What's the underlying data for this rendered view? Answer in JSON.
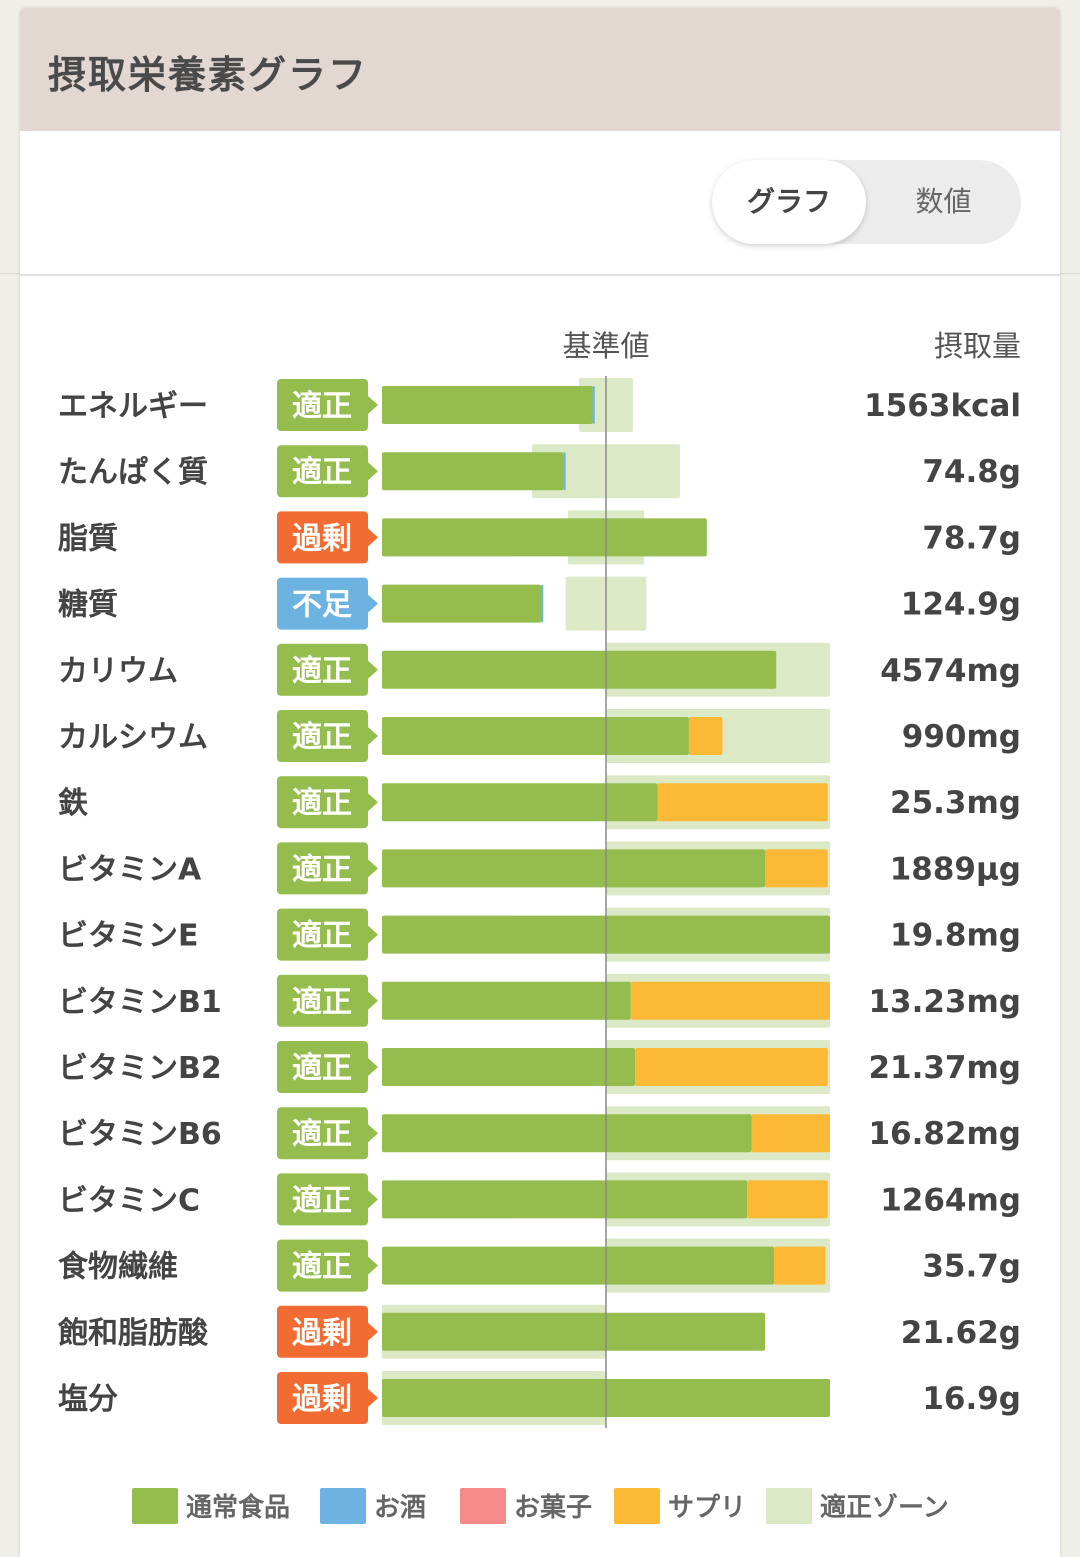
{
  "header": {
    "title": "摂取栄養素グラフ"
  },
  "view_toggle": {
    "graph_label": "グラフ",
    "value_label": "数値",
    "selected": "グラフ"
  },
  "colors": {
    "normal_food": "#94bd4d",
    "alcohol": "#6db3e2",
    "snacks": "#f58a8a",
    "supplement": "#fbb935",
    "proper_zone": "#dbe9c6",
    "status_proper": "#94bd4d",
    "status_excess": "#f26b32",
    "status_short": "#6db3e2"
  },
  "chart_data": {
    "type": "bar",
    "orientation": "horizontal",
    "stacked": true,
    "reference_label": "基準値",
    "value_header": "摂取量",
    "xlim_percent_of_reference": [
      0,
      200
    ],
    "reference_percent": 100,
    "legend": [
      {
        "key": "normal_food",
        "label": "通常食品"
      },
      {
        "key": "alcohol",
        "label": "お酒"
      },
      {
        "key": "snacks",
        "label": "お菓子"
      },
      {
        "key": "supplement",
        "label": "サプリ"
      },
      {
        "key": "proper_zone",
        "label": "適正ゾーン"
      }
    ],
    "legend_position": "bottom",
    "items": [
      {
        "name": "エネルギー",
        "status": "適正",
        "status_type": "proper",
        "intake": "1563kcal",
        "food_pct": 94,
        "alcohol_pct": 1,
        "snacks_pct": 0,
        "supplement_pct": 0,
        "zone_pct": [
          88,
          112
        ]
      },
      {
        "name": "たんぱく質",
        "status": "適正",
        "status_type": "proper",
        "intake": "74.8g",
        "food_pct": 81,
        "alcohol_pct": 1,
        "snacks_pct": 0,
        "supplement_pct": 0,
        "zone_pct": [
          67,
          133
        ]
      },
      {
        "name": "脂質",
        "status": "過剰",
        "status_type": "excess",
        "intake": "78.7g",
        "food_pct": 145,
        "alcohol_pct": 0,
        "snacks_pct": 0,
        "supplement_pct": 0,
        "zone_pct": [
          83,
          117
        ]
      },
      {
        "name": "糖質",
        "status": "不足",
        "status_type": "short",
        "intake": "124.9g",
        "food_pct": 71,
        "alcohol_pct": 1,
        "snacks_pct": 0,
        "supplement_pct": 0,
        "zone_pct": [
          82,
          118
        ]
      },
      {
        "name": "カリウム",
        "status": "適正",
        "status_type": "proper",
        "intake": "4574mg",
        "food_pct": 176,
        "alcohol_pct": 0,
        "snacks_pct": 0,
        "supplement_pct": 0,
        "zone_pct": [
          100,
          200
        ]
      },
      {
        "name": "カルシウム",
        "status": "適正",
        "status_type": "proper",
        "intake": "990mg",
        "food_pct": 137,
        "alcohol_pct": 0,
        "snacks_pct": 0,
        "supplement_pct": 15,
        "zone_pct": [
          100,
          200
        ]
      },
      {
        "name": "鉄",
        "status": "適正",
        "status_type": "proper",
        "intake": "25.3mg",
        "food_pct": 123,
        "alcohol_pct": 0,
        "snacks_pct": 0,
        "supplement_pct": 76,
        "zone_pct": [
          100,
          200
        ]
      },
      {
        "name": "ビタミンA",
        "status": "適正",
        "status_type": "proper",
        "intake": "1889μg",
        "food_pct": 171,
        "alcohol_pct": 0,
        "snacks_pct": 0,
        "supplement_pct": 28,
        "zone_pct": [
          100,
          200
        ]
      },
      {
        "name": "ビタミンE",
        "status": "適正",
        "status_type": "proper",
        "intake": "19.8mg",
        "food_pct": 200,
        "alcohol_pct": 0,
        "snacks_pct": 0,
        "supplement_pct": 0,
        "zone_pct": [
          100,
          200
        ]
      },
      {
        "name": "ビタミンB1",
        "status": "適正",
        "status_type": "proper",
        "intake": "13.23mg",
        "food_pct": 111,
        "alcohol_pct": 0,
        "snacks_pct": 0,
        "supplement_pct": 89,
        "zone_pct": [
          100,
          200
        ]
      },
      {
        "name": "ビタミンB2",
        "status": "適正",
        "status_type": "proper",
        "intake": "21.37mg",
        "food_pct": 113,
        "alcohol_pct": 0,
        "snacks_pct": 0,
        "supplement_pct": 86,
        "zone_pct": [
          100,
          200
        ]
      },
      {
        "name": "ビタミンB6",
        "status": "適正",
        "status_type": "proper",
        "intake": "16.82mg",
        "food_pct": 165,
        "alcohol_pct": 0,
        "snacks_pct": 0,
        "supplement_pct": 35,
        "zone_pct": [
          100,
          200
        ]
      },
      {
        "name": "ビタミンC",
        "status": "適正",
        "status_type": "proper",
        "intake": "1264mg",
        "food_pct": 163,
        "alcohol_pct": 0,
        "snacks_pct": 0,
        "supplement_pct": 36,
        "zone_pct": [
          100,
          200
        ]
      },
      {
        "name": "食物繊維",
        "status": "適正",
        "status_type": "proper",
        "intake": "35.7g",
        "food_pct": 175,
        "alcohol_pct": 0,
        "snacks_pct": 0,
        "supplement_pct": 23,
        "zone_pct": [
          100,
          200
        ]
      },
      {
        "name": "飽和脂肪酸",
        "status": "過剰",
        "status_type": "excess",
        "intake": "21.62g",
        "food_pct": 171,
        "alcohol_pct": 0,
        "snacks_pct": 0,
        "supplement_pct": 0,
        "zone_pct": [
          0,
          100
        ]
      },
      {
        "name": "塩分",
        "status": "過剰",
        "status_type": "excess",
        "intake": "16.9g",
        "food_pct": 200,
        "alcohol_pct": 0,
        "snacks_pct": 0,
        "supplement_pct": 0,
        "zone_pct": [
          0,
          100
        ]
      }
    ]
  }
}
